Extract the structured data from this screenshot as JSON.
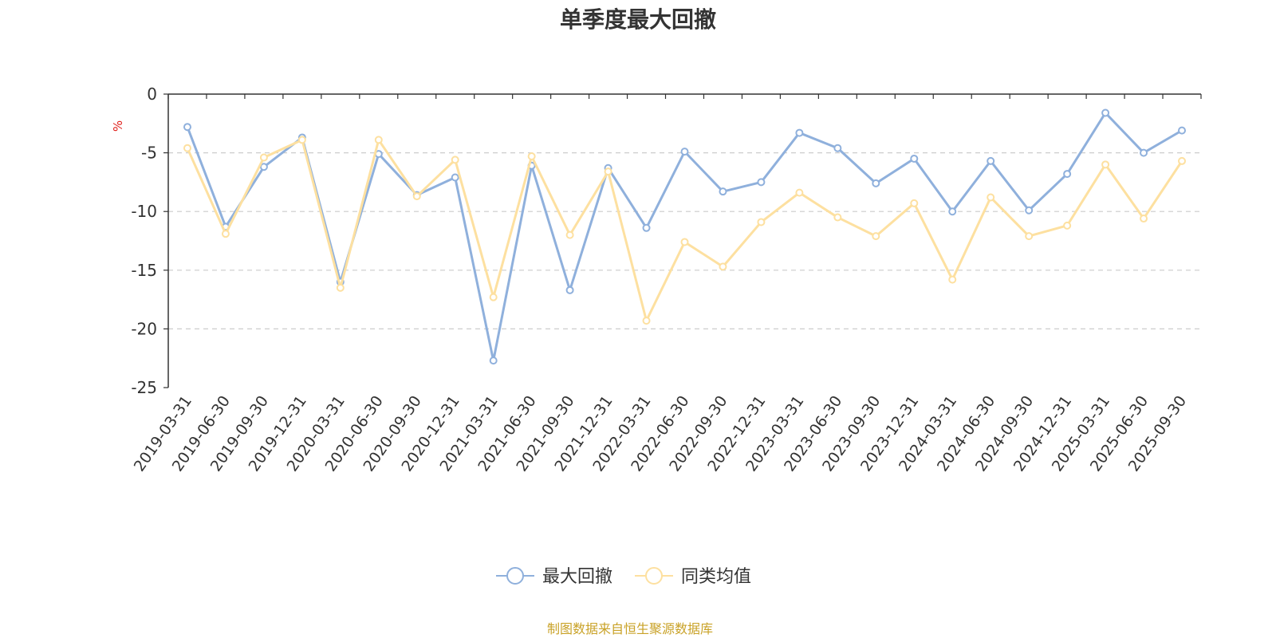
{
  "chart_data": {
    "type": "line",
    "title": "单季度最大回撤",
    "ylabel": "%",
    "ylim": [
      -25,
      0
    ],
    "yticks": [
      0,
      -5,
      -10,
      -15,
      -20,
      -25
    ],
    "grid": true,
    "legend_position": "bottom",
    "categories": [
      "2019-03-31",
      "2019-06-30",
      "2019-09-30",
      "2019-12-31",
      "2020-03-31",
      "2020-06-30",
      "2020-09-30",
      "2020-12-31",
      "2021-03-31",
      "2021-06-30",
      "2021-09-30",
      "2021-12-31",
      "2022-03-31",
      "2022-06-30",
      "2022-09-30",
      "2022-12-31",
      "2023-03-31",
      "2023-06-30",
      "2023-09-30",
      "2023-12-31",
      "2024-03-31",
      "2024-06-30",
      "2024-09-30",
      "2024-12-31",
      "2025-03-31",
      "2025-06-30",
      "2025-09-30"
    ],
    "series": [
      {
        "name": "最大回撤",
        "color": "#8fb0dc",
        "values": [
          -2.8,
          -11.3,
          -6.2,
          -3.7,
          -16.0,
          -5.1,
          -8.6,
          -7.1,
          -22.7,
          -6.1,
          -16.7,
          -6.3,
          -11.4,
          -4.9,
          -8.3,
          -7.5,
          -3.3,
          -4.6,
          -7.6,
          -5.5,
          -10.0,
          -5.7,
          -9.9,
          -6.8,
          -1.6,
          -5.0,
          -3.1
        ]
      },
      {
        "name": "同类均值",
        "color": "#fde0a0",
        "values": [
          -4.6,
          -11.9,
          -5.4,
          -3.9,
          -16.5,
          -3.9,
          -8.7,
          -5.6,
          -17.3,
          -5.3,
          -12.0,
          -6.6,
          -19.3,
          -12.6,
          -14.7,
          -10.9,
          -8.4,
          -10.5,
          -12.1,
          -9.3,
          -15.8,
          -8.8,
          -12.1,
          -11.2,
          -6.0,
          -10.6,
          -5.7
        ]
      }
    ]
  },
  "source_text": "制图数据来自恒生聚源数据库",
  "source_color": "#c9a227",
  "unit_color": "#e0201b"
}
